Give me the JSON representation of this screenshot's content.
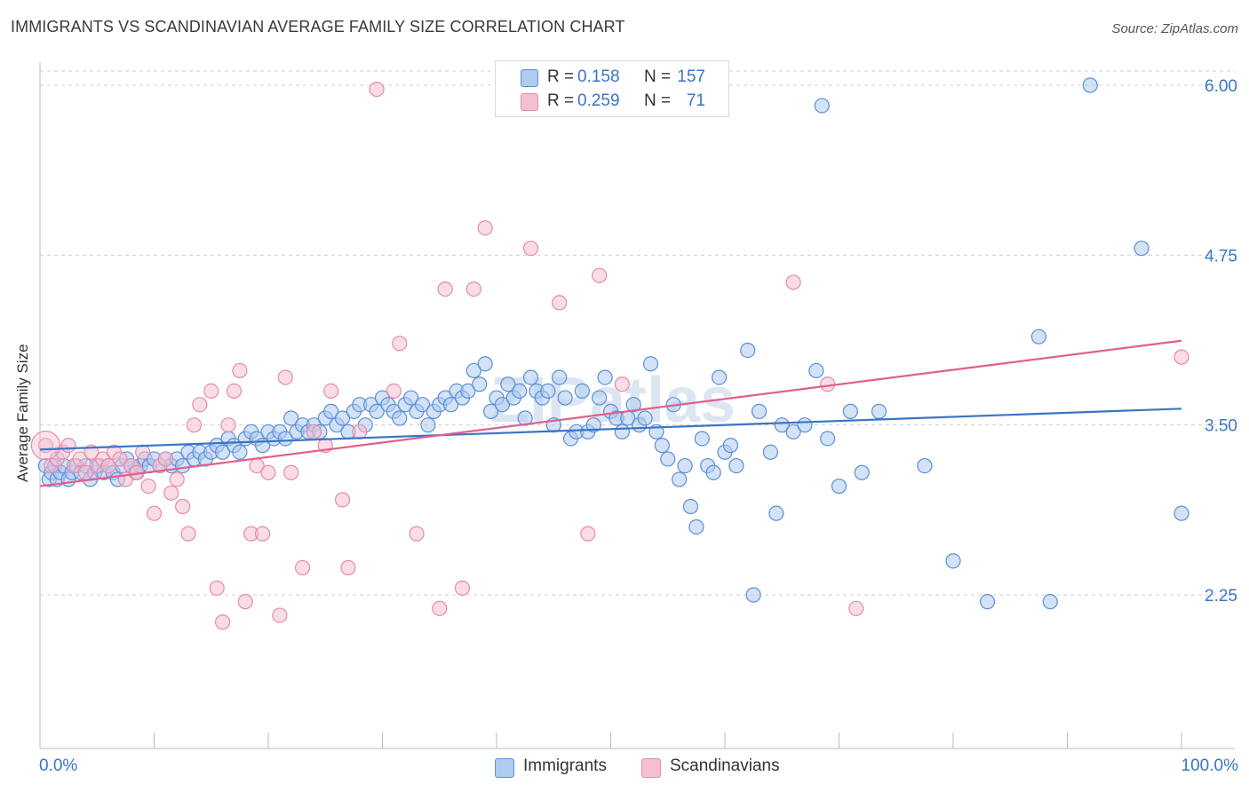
{
  "title": "IMMIGRANTS VS SCANDINAVIAN AVERAGE FAMILY SIZE CORRELATION CHART",
  "source": "Source: ZipAtlas.com",
  "watermark": "ZIPatlas",
  "legend_top": {
    "rows": [
      {
        "r_label": "R =",
        "r_value": "0.158",
        "n_label": "N =",
        "n_value": "157"
      },
      {
        "r_label": "R =",
        "r_value": "0.259",
        "n_label": "N =",
        "n_value": "71"
      }
    ]
  },
  "legend_bottom": [
    "Immigrants",
    "Scandinavians"
  ],
  "colors": {
    "immigrants_fill": "#aecbf0",
    "immigrants_stroke": "#5b8fd6",
    "immigrants_line": "#3a75c4",
    "scandinavians_fill": "#f6bfd1",
    "scandinavians_stroke": "#e58aab",
    "scandinavians_line": "#e0608e",
    "grid": "#d0d0d0",
    "tick_label": "#3a75c4"
  },
  "chart_data": {
    "type": "scatter",
    "title": "IMMIGRANTS VS SCANDINAVIAN AVERAGE FAMILY SIZE CORRELATION CHART",
    "xlabel": "",
    "ylabel": "Average Family Size",
    "x_tick_labels": [
      "0.0%",
      "100.0%"
    ],
    "y_tick_labels": [
      "6.00",
      "4.75",
      "3.50",
      "2.25"
    ],
    "y_ticks": [
      6.0,
      4.75,
      3.5,
      2.25
    ],
    "xlim": [
      0,
      100
    ],
    "ylim": [
      1.0,
      6.1
    ],
    "grid": "horizontal dashed",
    "legend_position": "top-center",
    "series": [
      {
        "name": "Immigrants",
        "r": 0.158,
        "n": 157,
        "trend": {
          "x0": 0,
          "y0": 3.32,
          "x1": 100,
          "y1": 3.62
        },
        "points": [
          [
            0.5,
            3.2
          ],
          [
            0.8,
            3.1
          ],
          [
            1.0,
            3.15
          ],
          [
            1.3,
            3.2
          ],
          [
            1.5,
            3.1
          ],
          [
            1.8,
            3.15
          ],
          [
            2.1,
            3.2
          ],
          [
            2.5,
            3.1
          ],
          [
            2.8,
            3.15
          ],
          [
            3.2,
            3.2
          ],
          [
            3.6,
            3.15
          ],
          [
            4.0,
            3.2
          ],
          [
            4.4,
            3.1
          ],
          [
            4.8,
            3.15
          ],
          [
            5.2,
            3.2
          ],
          [
            5.6,
            3.15
          ],
          [
            6.0,
            3.2
          ],
          [
            6.4,
            3.15
          ],
          [
            6.8,
            3.1
          ],
          [
            7.2,
            3.2
          ],
          [
            7.6,
            3.25
          ],
          [
            8.0,
            3.2
          ],
          [
            8.4,
            3.15
          ],
          [
            8.8,
            3.2
          ],
          [
            9.2,
            3.25
          ],
          [
            9.6,
            3.2
          ],
          [
            10.0,
            3.25
          ],
          [
            10.5,
            3.2
          ],
          [
            11.0,
            3.25
          ],
          [
            11.5,
            3.2
          ],
          [
            12.0,
            3.25
          ],
          [
            12.5,
            3.2
          ],
          [
            13.0,
            3.3
          ],
          [
            13.5,
            3.25
          ],
          [
            14.0,
            3.3
          ],
          [
            14.5,
            3.25
          ],
          [
            15.0,
            3.3
          ],
          [
            15.5,
            3.35
          ],
          [
            16.0,
            3.3
          ],
          [
            16.5,
            3.4
          ],
          [
            17.0,
            3.35
          ],
          [
            17.5,
            3.3
          ],
          [
            18.0,
            3.4
          ],
          [
            18.5,
            3.45
          ],
          [
            19.0,
            3.4
          ],
          [
            19.5,
            3.35
          ],
          [
            20.0,
            3.45
          ],
          [
            20.5,
            3.4
          ],
          [
            21.0,
            3.45
          ],
          [
            21.5,
            3.4
          ],
          [
            22.0,
            3.55
          ],
          [
            22.5,
            3.45
          ],
          [
            23.0,
            3.5
          ],
          [
            23.5,
            3.45
          ],
          [
            24.0,
            3.5
          ],
          [
            24.5,
            3.45
          ],
          [
            25.0,
            3.55
          ],
          [
            25.5,
            3.6
          ],
          [
            26.0,
            3.5
          ],
          [
            26.5,
            3.55
          ],
          [
            27.0,
            3.45
          ],
          [
            27.5,
            3.6
          ],
          [
            28.0,
            3.65
          ],
          [
            28.5,
            3.5
          ],
          [
            29.0,
            3.65
          ],
          [
            29.5,
            3.6
          ],
          [
            30.0,
            3.7
          ],
          [
            30.5,
            3.65
          ],
          [
            31.0,
            3.6
          ],
          [
            31.5,
            3.55
          ],
          [
            32.0,
            3.65
          ],
          [
            32.5,
            3.7
          ],
          [
            33.0,
            3.6
          ],
          [
            33.5,
            3.65
          ],
          [
            34.0,
            3.5
          ],
          [
            34.5,
            3.6
          ],
          [
            35.0,
            3.65
          ],
          [
            35.5,
            3.7
          ],
          [
            36.0,
            3.65
          ],
          [
            36.5,
            3.75
          ],
          [
            37.0,
            3.7
          ],
          [
            37.5,
            3.75
          ],
          [
            38.0,
            3.9
          ],
          [
            38.5,
            3.8
          ],
          [
            39.0,
            3.95
          ],
          [
            39.5,
            3.6
          ],
          [
            40.0,
            3.7
          ],
          [
            40.5,
            3.65
          ],
          [
            41.0,
            3.8
          ],
          [
            41.5,
            3.7
          ],
          [
            42.0,
            3.75
          ],
          [
            42.5,
            3.55
          ],
          [
            43.0,
            3.85
          ],
          [
            43.5,
            3.75
          ],
          [
            44.0,
            3.7
          ],
          [
            44.5,
            3.75
          ],
          [
            45.0,
            3.5
          ],
          [
            45.5,
            3.85
          ],
          [
            46.0,
            3.7
          ],
          [
            46.5,
            3.4
          ],
          [
            47.0,
            3.45
          ],
          [
            47.5,
            3.75
          ],
          [
            48.0,
            3.45
          ],
          [
            48.5,
            3.5
          ],
          [
            49.0,
            3.7
          ],
          [
            49.5,
            3.85
          ],
          [
            50.0,
            3.6
          ],
          [
            50.5,
            3.55
          ],
          [
            51.0,
            3.45
          ],
          [
            51.5,
            3.55
          ],
          [
            52.0,
            3.65
          ],
          [
            52.5,
            3.5
          ],
          [
            53.0,
            3.55
          ],
          [
            53.5,
            3.95
          ],
          [
            54.0,
            3.45
          ],
          [
            54.5,
            3.35
          ],
          [
            55.0,
            3.25
          ],
          [
            55.5,
            3.65
          ],
          [
            56.0,
            3.1
          ],
          [
            56.5,
            3.2
          ],
          [
            57.0,
            2.9
          ],
          [
            57.5,
            2.75
          ],
          [
            58.0,
            3.4
          ],
          [
            58.5,
            3.2
          ],
          [
            59.0,
            3.15
          ],
          [
            59.5,
            3.85
          ],
          [
            60.0,
            3.3
          ],
          [
            60.5,
            3.35
          ],
          [
            61.0,
            3.2
          ],
          [
            62.0,
            4.05
          ],
          [
            62.5,
            2.25
          ],
          [
            63.0,
            3.6
          ],
          [
            64.0,
            3.3
          ],
          [
            64.5,
            2.85
          ],
          [
            65.0,
            3.5
          ],
          [
            66.0,
            3.45
          ],
          [
            67.0,
            3.5
          ],
          [
            68.0,
            3.9
          ],
          [
            68.5,
            5.85
          ],
          [
            69.0,
            3.4
          ],
          [
            70.0,
            3.05
          ],
          [
            71.0,
            3.6
          ],
          [
            72.0,
            3.15
          ],
          [
            73.5,
            3.6
          ],
          [
            77.5,
            3.2
          ],
          [
            80.0,
            2.5
          ],
          [
            83.0,
            2.2
          ],
          [
            87.5,
            4.15
          ],
          [
            88.5,
            2.2
          ],
          [
            92.0,
            6.0
          ],
          [
            96.5,
            4.8
          ],
          [
            100.0,
            2.85
          ]
        ]
      },
      {
        "name": "Scandinavians",
        "r": 0.259,
        "n": 71,
        "trend": {
          "x0": 0,
          "y0": 3.05,
          "x1": 100,
          "y1": 4.12
        },
        "points": [
          [
            0.5,
            3.35
          ],
          [
            1.0,
            3.2
          ],
          [
            1.5,
            3.25
          ],
          [
            2.0,
            3.3
          ],
          [
            2.5,
            3.35
          ],
          [
            3.0,
            3.2
          ],
          [
            3.5,
            3.25
          ],
          [
            4.0,
            3.15
          ],
          [
            4.5,
            3.3
          ],
          [
            5.0,
            3.2
          ],
          [
            5.5,
            3.25
          ],
          [
            6.0,
            3.2
          ],
          [
            6.5,
            3.3
          ],
          [
            7.0,
            3.25
          ],
          [
            7.5,
            3.1
          ],
          [
            8.0,
            3.2
          ],
          [
            8.5,
            3.15
          ],
          [
            9.0,
            3.3
          ],
          [
            9.5,
            3.05
          ],
          [
            10.0,
            2.85
          ],
          [
            10.5,
            3.2
          ],
          [
            11.0,
            3.25
          ],
          [
            11.5,
            3.0
          ],
          [
            12.0,
            3.1
          ],
          [
            12.5,
            2.9
          ],
          [
            13.0,
            2.7
          ],
          [
            13.5,
            3.5
          ],
          [
            14.0,
            3.65
          ],
          [
            15.0,
            3.75
          ],
          [
            15.5,
            2.3
          ],
          [
            16.0,
            2.05
          ],
          [
            16.5,
            3.5
          ],
          [
            17.0,
            3.75
          ],
          [
            17.5,
            3.9
          ],
          [
            18.0,
            2.2
          ],
          [
            18.5,
            2.7
          ],
          [
            19.0,
            3.2
          ],
          [
            19.5,
            2.7
          ],
          [
            20.0,
            3.15
          ],
          [
            21.0,
            2.1
          ],
          [
            21.5,
            3.85
          ],
          [
            22.0,
            3.15
          ],
          [
            23.0,
            2.45
          ],
          [
            24.0,
            3.45
          ],
          [
            25.0,
            3.35
          ],
          [
            25.5,
            3.75
          ],
          [
            26.5,
            2.95
          ],
          [
            27.0,
            2.45
          ],
          [
            28.0,
            3.45
          ],
          [
            29.5,
            5.97
          ],
          [
            31.0,
            3.75
          ],
          [
            31.5,
            4.1
          ],
          [
            33.0,
            2.7
          ],
          [
            35.0,
            2.15
          ],
          [
            35.5,
            4.5
          ],
          [
            37.0,
            2.3
          ],
          [
            38.0,
            4.5
          ],
          [
            39.0,
            4.95
          ],
          [
            43.0,
            4.8
          ],
          [
            45.5,
            4.4
          ],
          [
            48.0,
            2.7
          ],
          [
            49.0,
            4.6
          ],
          [
            51.0,
            3.8
          ],
          [
            66.0,
            4.55
          ],
          [
            69.0,
            3.8
          ],
          [
            71.5,
            2.15
          ],
          [
            100.0,
            4.0
          ]
        ]
      }
    ]
  }
}
